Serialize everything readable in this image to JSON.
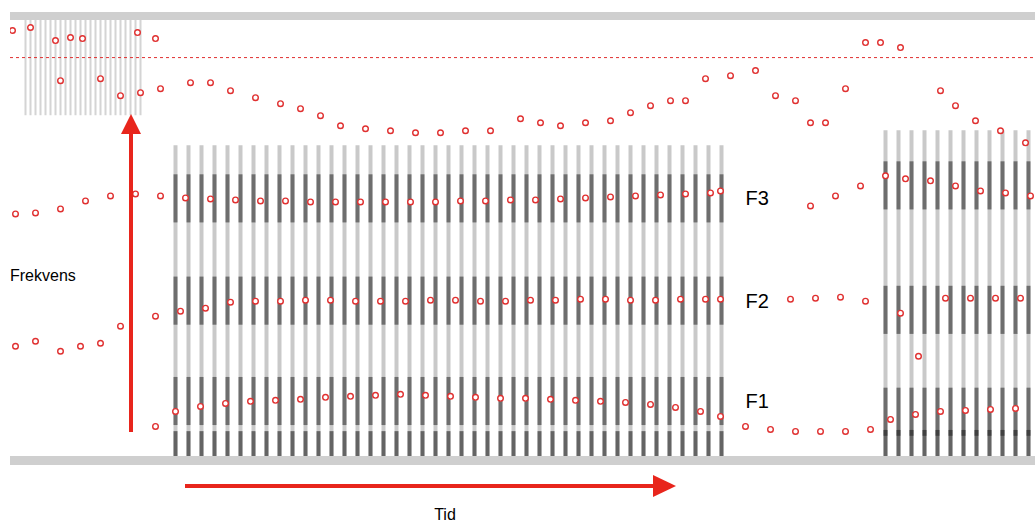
{
  "chart_data": {
    "type": "spectrogram",
    "xlabel": "Tid",
    "ylabel": "Frekvens",
    "xlim": [
      0,
      1025
    ],
    "ylim": [
      0,
      435
    ],
    "tick_labels": false,
    "grid": false,
    "dashed_line": 398,
    "voiced": [
      {
        "start": 165,
        "end": 720,
        "top": 310
      },
      {
        "start": 875,
        "end": 1025,
        "top": 325
      }
    ],
    "frication": [
      {
        "start": 15,
        "end": 130,
        "bottom": 340
      }
    ],
    "series": [
      {
        "name": "F1",
        "color": "#e03030",
        "marker": "circle",
        "x": [
          145,
          165,
          190,
          215,
          240,
          265,
          290,
          315,
          340,
          365,
          390,
          415,
          440,
          465,
          490,
          515,
          540,
          565,
          590,
          615,
          640,
          665,
          690,
          710,
          735,
          760,
          785,
          810,
          835,
          860,
          880,
          905,
          930,
          955,
          980,
          1005
        ],
        "values": [
          30,
          45,
          50,
          53,
          55,
          56,
          57,
          59,
          60,
          61,
          62,
          61,
          60,
          59,
          58,
          58,
          57,
          56,
          55,
          54,
          52,
          49,
          45,
          40,
          30,
          27,
          25,
          25,
          25,
          27,
          37,
          42,
          45,
          46,
          47,
          48
        ]
      },
      {
        "name": "F2",
        "color": "#e03030",
        "marker": "circle",
        "x": [
          5,
          25,
          50,
          70,
          90,
          110,
          145,
          170,
          195,
          220,
          245,
          270,
          295,
          320,
          345,
          370,
          395,
          420,
          445,
          470,
          495,
          520,
          545,
          570,
          595,
          620,
          645,
          670,
          695,
          710,
          780,
          805,
          830,
          855,
          890,
          908,
          935,
          960,
          985,
          1010
        ],
        "values": [
          110,
          115,
          105,
          110,
          113,
          130,
          140,
          145,
          148,
          154,
          155,
          155,
          156,
          156,
          155,
          155,
          155,
          156,
          156,
          155,
          155,
          156,
          156,
          157,
          157,
          156,
          156,
          157,
          157,
          157,
          157,
          158,
          159,
          155,
          143,
          100,
          158,
          158,
          158,
          158
        ]
      },
      {
        "name": "F3",
        "color": "#e03030",
        "marker": "circle",
        "x": [
          5,
          25,
          50,
          75,
          100,
          125,
          150,
          175,
          200,
          225,
          250,
          275,
          300,
          325,
          350,
          375,
          400,
          425,
          450,
          475,
          500,
          525,
          550,
          575,
          600,
          625,
          650,
          675,
          700,
          710,
          800,
          825,
          850,
          875,
          895,
          920,
          945,
          970,
          995,
          1020
        ],
        "values": [
          242,
          243,
          247,
          255,
          260,
          262,
          260,
          258,
          257,
          256,
          255,
          255,
          254,
          254,
          254,
          254,
          254,
          254,
          255,
          255,
          256,
          256,
          257,
          258,
          259,
          260,
          261,
          262,
          263,
          265,
          250,
          260,
          270,
          280,
          277,
          275,
          270,
          265,
          263,
          260
        ]
      },
      {
        "name": null,
        "color": "#e03030",
        "marker": "circle",
        "x": [
          50,
          90,
          110,
          130,
          150,
          180,
          200,
          220,
          245,
          270,
          290,
          310,
          330,
          355,
          380,
          405,
          430,
          455,
          480,
          510,
          530,
          550,
          575,
          600,
          620,
          640,
          660,
          675,
          695,
          720,
          745,
          765,
          785,
          800,
          815,
          835,
          930,
          945,
          965,
          990,
          1015
        ],
        "values": [
          375,
          377,
          360,
          363,
          367,
          373,
          373,
          365,
          358,
          352,
          347,
          340,
          330,
          327,
          325,
          323,
          323,
          325,
          325,
          337,
          333,
          330,
          333,
          335,
          343,
          350,
          355,
          355,
          377,
          380,
          385,
          360,
          355,
          333,
          333,
          367,
          365,
          350,
          335,
          325,
          313
        ]
      },
      {
        "name": null,
        "color": "#e03030",
        "marker": "circle",
        "x": [
          2,
          20,
          45,
          60,
          72,
          127,
          145,
          855,
          870,
          890
        ],
        "values": [
          425,
          428,
          415,
          418,
          417,
          423,
          417,
          413,
          413,
          408
        ]
      }
    ]
  }
}
